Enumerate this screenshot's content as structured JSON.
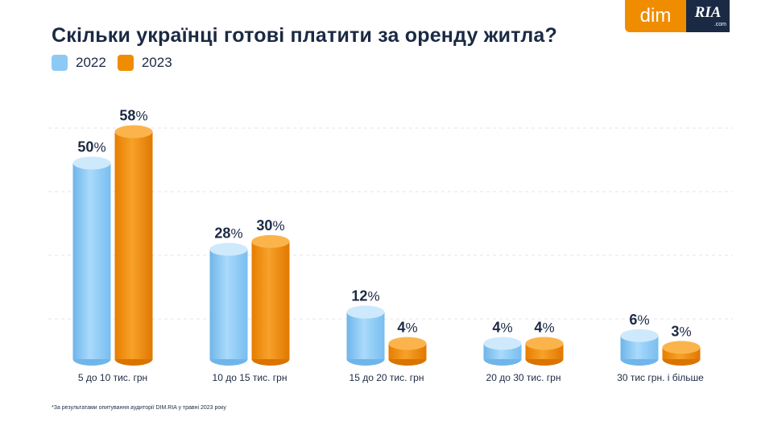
{
  "logo": {
    "dim": "dim",
    "ria": "RIA",
    "ria_domain": ".com"
  },
  "chart_data": {
    "type": "bar",
    "title": "Скільки українці готові платити за оренду житла?",
    "categories": [
      "5 до 10 тис. грн",
      "10 до 15 тис. грн",
      "15 до 20 тис. грн",
      "20 до 30 тис. грн",
      "30 тис грн. і більше"
    ],
    "series": [
      {
        "name": "2022",
        "values": [
          50,
          28,
          12,
          4,
          6
        ],
        "color": "#8ccaf5"
      },
      {
        "name": "2023",
        "values": [
          58,
          30,
          4,
          4,
          3
        ],
        "color": "#f08c00"
      }
    ],
    "value_suffix": "%",
    "ylim": [
      0,
      60
    ],
    "grid": true,
    "legend_position": "top-left"
  },
  "footnote": "*За результатами опитування аудиторії DIM.RIA у травні 2023 року"
}
